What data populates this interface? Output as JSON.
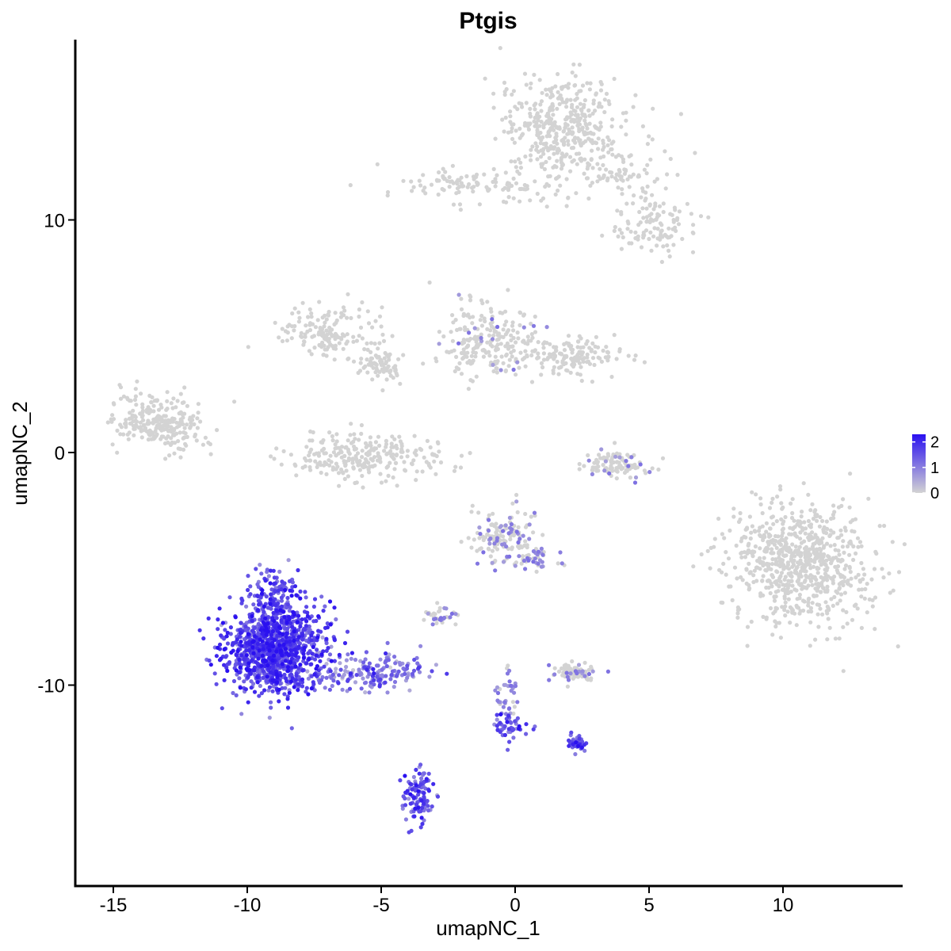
{
  "chart_data": {
    "type": "scatter",
    "title": "Ptgis",
    "xlabel": "umapNC_1",
    "ylabel": "umapNC_2",
    "xlim": [
      -16.5,
      14.5
    ],
    "ylim": [
      -18.5,
      17.5
    ],
    "x_ticks": [
      -15,
      -10,
      -5,
      0,
      5,
      10
    ],
    "x_tick_labels": [
      "-15",
      "-10",
      "-5",
      "0",
      "5",
      "10"
    ],
    "y_ticks": [
      -10,
      0,
      10
    ],
    "y_tick_labels": [
      "-10",
      "0",
      "10"
    ],
    "grid": false,
    "legend_position": "right",
    "color_scale": {
      "low_color": "#d3d3d3",
      "high_color": "#2a10f0",
      "min": 0,
      "max": 2.3,
      "ticks": [
        0,
        1,
        2
      ],
      "tick_labels": [
        "0",
        "1",
        "2"
      ]
    },
    "clusters": [
      {
        "name": "top-right",
        "cx": 1.8,
        "cy": 14.0,
        "sx": 1.2,
        "sy": 1.1,
        "n": 420,
        "expr": 0.0
      },
      {
        "name": "top-arm-left",
        "cx": -1.5,
        "cy": 11.5,
        "sx": 1.6,
        "sy": 0.4,
        "n": 120,
        "expr": 0.0
      },
      {
        "name": "top-arm-right",
        "cx": 5.2,
        "cy": 9.7,
        "sx": 0.8,
        "sy": 0.6,
        "n": 110,
        "expr": 0.0
      },
      {
        "name": "top-arm-mid",
        "cx": 4.0,
        "cy": 11.8,
        "sx": 1.0,
        "sy": 0.5,
        "n": 70,
        "expr": 0.0
      },
      {
        "name": "far-left",
        "cx": -13.3,
        "cy": 1.3,
        "sx": 0.9,
        "sy": 0.6,
        "n": 260,
        "expr": 0.0
      },
      {
        "name": "mid-left-upper",
        "cx": -7.0,
        "cy": 5.2,
        "sx": 0.9,
        "sy": 0.6,
        "n": 150,
        "expr": 0.0
      },
      {
        "name": "mid-left-stem",
        "cx": -5.0,
        "cy": 3.8,
        "sx": 0.5,
        "sy": 0.4,
        "n": 80,
        "expr": 0.0
      },
      {
        "name": "mid-left-cup",
        "cx": -5.5,
        "cy": -0.2,
        "sx": 1.4,
        "sy": 0.5,
        "n": 260,
        "expr": 0.0
      },
      {
        "name": "mid-center",
        "cx": -1.0,
        "cy": 4.8,
        "sx": 0.9,
        "sy": 0.9,
        "n": 220,
        "expr": 0.02
      },
      {
        "name": "mid-center-right",
        "cx": 2.2,
        "cy": 4.2,
        "sx": 1.0,
        "sy": 0.4,
        "n": 150,
        "expr": 0.0
      },
      {
        "name": "small-right",
        "cx": 3.8,
        "cy": -0.5,
        "sx": 0.6,
        "sy": 0.3,
        "n": 110,
        "expr": 0.05
      },
      {
        "name": "large-right",
        "cx": 10.6,
        "cy": -4.8,
        "sx": 1.3,
        "sy": 1.3,
        "n": 750,
        "expr": 0.0
      },
      {
        "name": "center-small",
        "cx": -0.5,
        "cy": -3.6,
        "sx": 0.6,
        "sy": 0.6,
        "n": 150,
        "expr": 0.08
      },
      {
        "name": "center-small-tail",
        "cx": 0.8,
        "cy": -4.5,
        "sx": 0.5,
        "sy": 0.3,
        "n": 40,
        "expr": 0.2
      },
      {
        "name": "left-small",
        "cx": -2.8,
        "cy": -7.0,
        "sx": 0.3,
        "sy": 0.2,
        "n": 35,
        "expr": 0.15
      },
      {
        "name": "center-lower",
        "cx": 2.2,
        "cy": -9.5,
        "sx": 0.5,
        "sy": 0.2,
        "n": 80,
        "expr": 0.05
      },
      {
        "name": "main-expressing",
        "cx": -9.0,
        "cy": -8.5,
        "sx": 0.9,
        "sy": 0.9,
        "n": 1100,
        "expr": 1.65
      },
      {
        "name": "main-expressing-top",
        "cx": -9.0,
        "cy": -6.3,
        "sx": 0.5,
        "sy": 0.7,
        "n": 150,
        "expr": 1.6
      },
      {
        "name": "main-tail",
        "cx": -5.5,
        "cy": -9.5,
        "sx": 1.3,
        "sy": 0.4,
        "n": 180,
        "expr": 1.05
      },
      {
        "name": "center-stem",
        "cx": -0.3,
        "cy": -10.5,
        "sx": 0.2,
        "sy": 0.6,
        "n": 40,
        "expr": 0.2
      },
      {
        "name": "center-bottom-expr",
        "cx": -0.2,
        "cy": -11.8,
        "sx": 0.3,
        "sy": 0.3,
        "n": 45,
        "expr": 1.5
      },
      {
        "name": "right-bottom-expr",
        "cx": 2.3,
        "cy": -12.5,
        "sx": 0.2,
        "sy": 0.2,
        "n": 40,
        "expr": 1.5
      },
      {
        "name": "bottom-crescent",
        "cx": -3.6,
        "cy": -14.8,
        "sx": 0.25,
        "sy": 0.6,
        "n": 110,
        "expr": 1.5
      }
    ]
  }
}
